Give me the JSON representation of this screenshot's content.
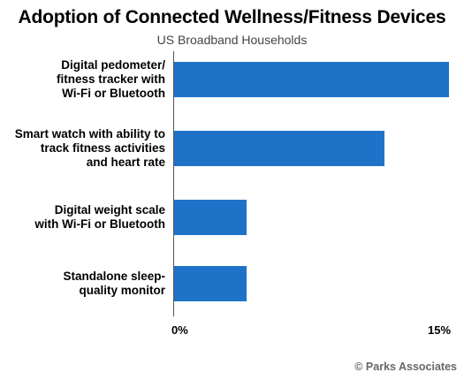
{
  "chart_data": {
    "type": "bar",
    "orientation": "horizontal",
    "title": "Adoption of Connected Wellness/Fitness Devices",
    "subtitle": "US Broadband Households",
    "categories": [
      "Digital pedometer/\nfitness tracker with\nWi-Fi or Bluetooth",
      "Smart watch with ability to\ntrack fitness activities\nand heart rate",
      "Digital weight scale\nwith Wi-Fi or Bluetooth",
      "Standalone sleep-\nquality monitor"
    ],
    "values": [
      15,
      11.5,
      4,
      4
    ],
    "xlim": [
      0,
      15
    ],
    "x_ticks": [
      "0%",
      "15%"
    ],
    "bar_color": "#1e73c8",
    "grid": false,
    "legend": "none"
  },
  "source": "© Parks Associates"
}
